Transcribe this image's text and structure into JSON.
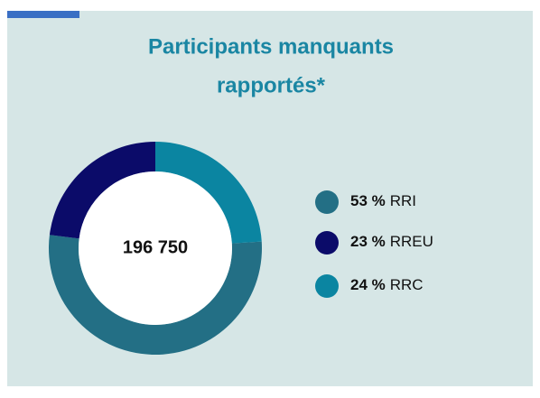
{
  "chart_data": {
    "type": "pie",
    "title": [
      "Participants manquants",
      "rapportés*"
    ],
    "center_label": "196 750",
    "categories": [
      "RRI",
      "RREU",
      "RRC"
    ],
    "values": [
      53,
      23,
      24
    ],
    "value_labels": [
      "53 %",
      "23 %",
      "24 %"
    ],
    "colors": [
      "#236f85",
      "#0b0b69",
      "#0b85a1"
    ]
  }
}
